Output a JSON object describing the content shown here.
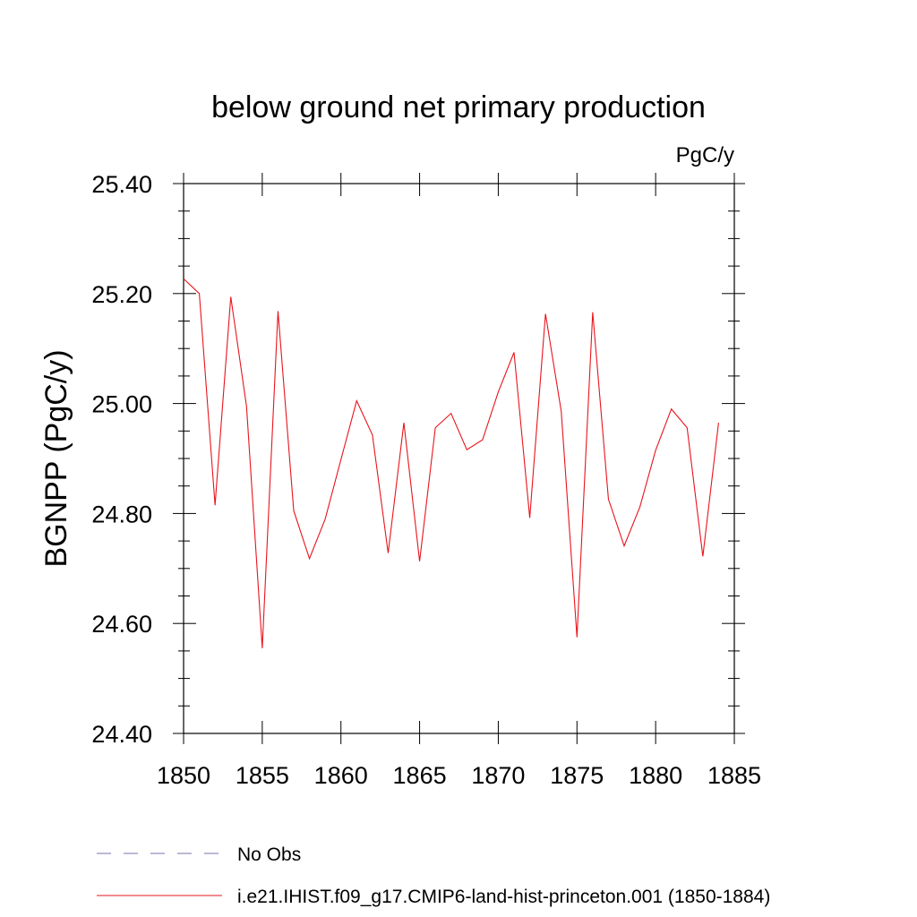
{
  "chart_data": {
    "type": "line",
    "title": "below ground net primary production",
    "units_label": "PgC/y",
    "ylabel": "BGNPP  (PgC/y)",
    "xlabel": "",
    "xlim": [
      1850,
      1885
    ],
    "ylim": [
      24.4,
      25.4
    ],
    "xticks": [
      "1850",
      "1855",
      "1860",
      "1865",
      "1870",
      "1875",
      "1880",
      "1885"
    ],
    "yticks": [
      "24.40",
      "24.60",
      "24.80",
      "25.00",
      "25.20",
      "25.40"
    ],
    "grid": false,
    "legend_placement": "bottom",
    "series": [
      {
        "name": "No Obs",
        "color": "#7b6fae",
        "dash": true,
        "x": [],
        "y": []
      },
      {
        "name": "i.e21.IHIST.f09_g17.CMIP6-land-hist-princeton.001 (1850-1884)",
        "color": "#e8141c",
        "dash": false,
        "x": [
          1850,
          1851,
          1852,
          1853,
          1854,
          1855,
          1856,
          1857,
          1858,
          1859,
          1860,
          1861,
          1862,
          1863,
          1864,
          1865,
          1866,
          1867,
          1868,
          1869,
          1870,
          1871,
          1872,
          1873,
          1874,
          1875,
          1876,
          1877,
          1878,
          1879,
          1880,
          1881,
          1882,
          1883,
          1884
        ],
        "y": [
          25.227,
          25.2,
          24.815,
          25.194,
          24.995,
          24.555,
          25.168,
          24.805,
          24.718,
          24.79,
          24.898,
          25.005,
          24.943,
          24.728,
          24.965,
          24.713,
          24.956,
          24.982,
          24.916,
          24.934,
          25.021,
          25.093,
          24.792,
          25.163,
          24.986,
          24.575,
          25.166,
          24.826,
          24.741,
          24.812,
          24.915,
          24.99,
          24.956,
          24.722,
          24.965
        ]
      }
    ]
  }
}
